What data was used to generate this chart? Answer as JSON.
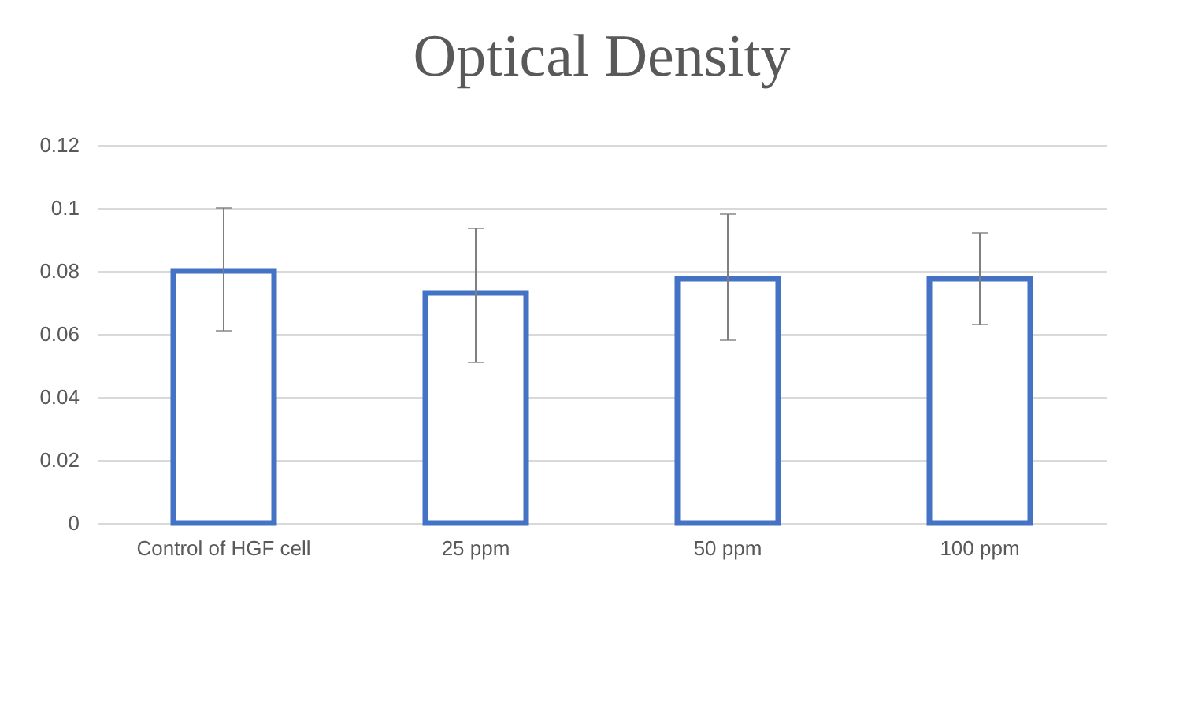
{
  "chart_data": {
    "type": "bar",
    "title": "Optical Density",
    "categories": [
      "Control of HGF cell",
      "25 ppm",
      "50 ppm",
      "100 ppm"
    ],
    "values": [
      0.08,
      0.073,
      0.0775,
      0.0775
    ],
    "errors": [
      [
        0.061,
        0.1
      ],
      [
        0.051,
        0.0935
      ],
      [
        0.058,
        0.098
      ],
      [
        0.063,
        0.092
      ]
    ],
    "color": "#4472c4",
    "ylim": [
      0,
      0.12
    ],
    "yticks": [
      0,
      0.02,
      0.04,
      0.06,
      0.08,
      0.1,
      0.12
    ],
    "grid": "y"
  }
}
